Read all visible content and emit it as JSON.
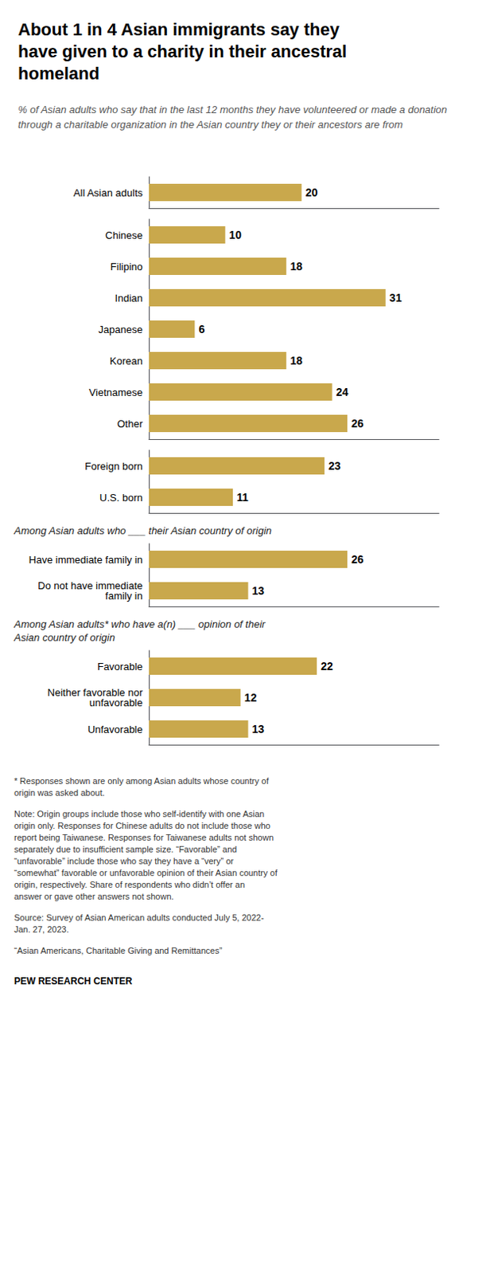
{
  "chart_data": {
    "type": "bar",
    "orientation": "horizontal",
    "title": "About 1 in 4 Asian immigrants say they\nhave given to a charity in their ancestral\nhomeland",
    "subtitle": "% of Asian adults who say that in the last 12 months they have volunteered or made a donation through a charitable organization in the Asian country they or their ancestors are from",
    "categories": [
      "All Asian adults",
      "Chinese",
      "Filipino",
      "Indian",
      "Japanese",
      "Korean",
      "Vietnamese",
      "Other",
      "Foreign born",
      "U.S. born",
      "Have immediate family in",
      "Do not have immediate\nfamily in",
      "Favorable",
      "Neither favorable nor\nunfavorable",
      "Unfavorable"
    ],
    "values": [
      20,
      10,
      18,
      31,
      6,
      18,
      24,
      26,
      23,
      11,
      26,
      13,
      22,
      12,
      13
    ],
    "color": "#C9A84C",
    "xlim": [
      0,
      38
    ],
    "grid": false,
    "data_labels": true,
    "tick_labels": "y",
    "sections": [
      {
        "first": "All Asian adults"
      },
      {
        "first": "Chinese"
      },
      {
        "first": "Foreign born"
      },
      {
        "first": "Have immediate family in",
        "label": "Among Asian adults who ___ their Asian country of origin"
      },
      {
        "first": "Favorable",
        "label": "Among Asian adults* who have a(n) ___ opinion of their\nAsian country of origin"
      }
    ],
    "footnotes": [
      "* Responses shown are only among Asian adults whose country of\norigin was asked about.",
      "Note: Origin groups include those who self-identify with one Asian\norigin only. Responses for Chinese adults do not include those who\nreport being Taiwanese. Responses for Taiwanese adults not shown\nseparately due to insufficient sample size. “Favorable” and\n“unfavorable” include those who say they have a “very” or\n“somewhat” favorable or unfavorable opinion of their Asian country of\norigin, respectively. Share of respondents who didn’t offer an\nanswer or gave other answers not shown.",
      "Source: Survey of Asian American adults conducted July 5, 2022-\nJan. 27, 2023.",
      "“Asian Americans, Charitable Giving and Remittances”"
    ],
    "branding": "PEW RESEARCH CENTER"
  }
}
